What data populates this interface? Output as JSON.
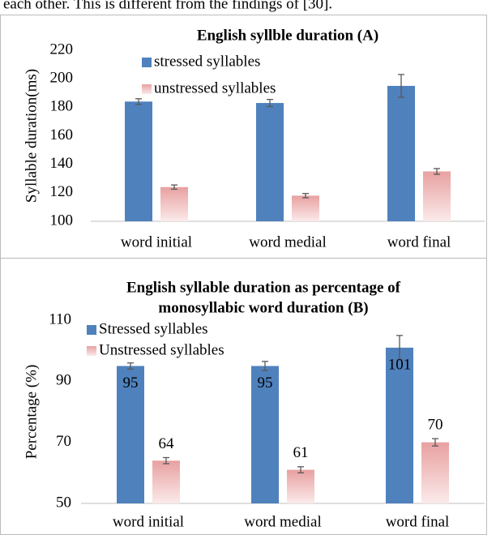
{
  "header_text": "each other. This is different from the findings of [30].",
  "chart_data": [
    {
      "type": "bar",
      "title": "English syllble duration (A)",
      "y_label": "Syllable duration(ms)",
      "categories": [
        "word initial",
        "word medial",
        "word final"
      ],
      "series": [
        {
          "name": "stressed syllables",
          "color": "#4f81bd",
          "values": [
            184,
            183,
            195
          ],
          "errors": [
            2,
            2.5,
            8
          ]
        },
        {
          "name": "unstressed syllables",
          "color": "#e8a0a0",
          "values": [
            124,
            118,
            135
          ],
          "errors": [
            1.5,
            1.5,
            2
          ]
        }
      ],
      "ylim": [
        100,
        220
      ],
      "yticks": [
        100,
        120,
        140,
        160,
        180,
        200,
        220
      ],
      "grid": false,
      "legend": "top",
      "data_labels": false
    },
    {
      "type": "bar",
      "title": [
        "English syllable duration as percentage of",
        "monosyllabic word duration (B)"
      ],
      "y_label": "Percentage (%)",
      "categories": [
        "word initial",
        "word medial",
        "word final"
      ],
      "series": [
        {
          "name": "Stressed syllables",
          "color": "#4f81bd",
          "values": [
            95,
            95,
            101
          ],
          "errors": [
            1,
            1.5,
            4
          ]
        },
        {
          "name": "Unstressed syllables",
          "color": "#e8a0a0",
          "values": [
            64,
            61,
            70
          ],
          "errors": [
            1,
            1,
            1.2
          ]
        }
      ],
      "ylim": [
        50,
        110
      ],
      "yticks": [
        50,
        70,
        90,
        110
      ],
      "grid": false,
      "legend": "top-left",
      "data_labels": true
    }
  ]
}
